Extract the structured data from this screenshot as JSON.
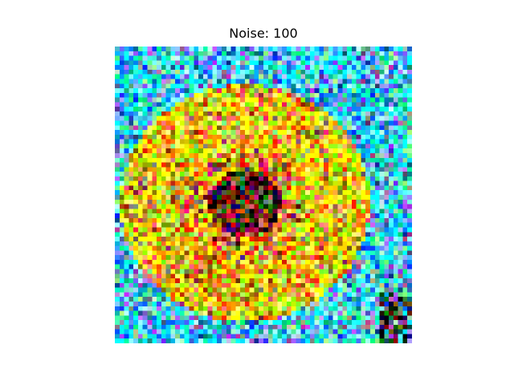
{
  "figure": {
    "title": "Noise: 100"
  },
  "image": {
    "subject": "sunflower",
    "noise_level": 100,
    "grid_resolution": 64,
    "palette": {
      "center_dark": "#1a1200",
      "center_red": "#b01818",
      "petal_yellow": "#f2e000",
      "petal_orange": "#f0a000",
      "sky_cyan": "#32e6ff",
      "sky_blue": "#4aa8f0",
      "noise_magenta": "#ff40ff",
      "noise_green": "#28c828"
    }
  }
}
